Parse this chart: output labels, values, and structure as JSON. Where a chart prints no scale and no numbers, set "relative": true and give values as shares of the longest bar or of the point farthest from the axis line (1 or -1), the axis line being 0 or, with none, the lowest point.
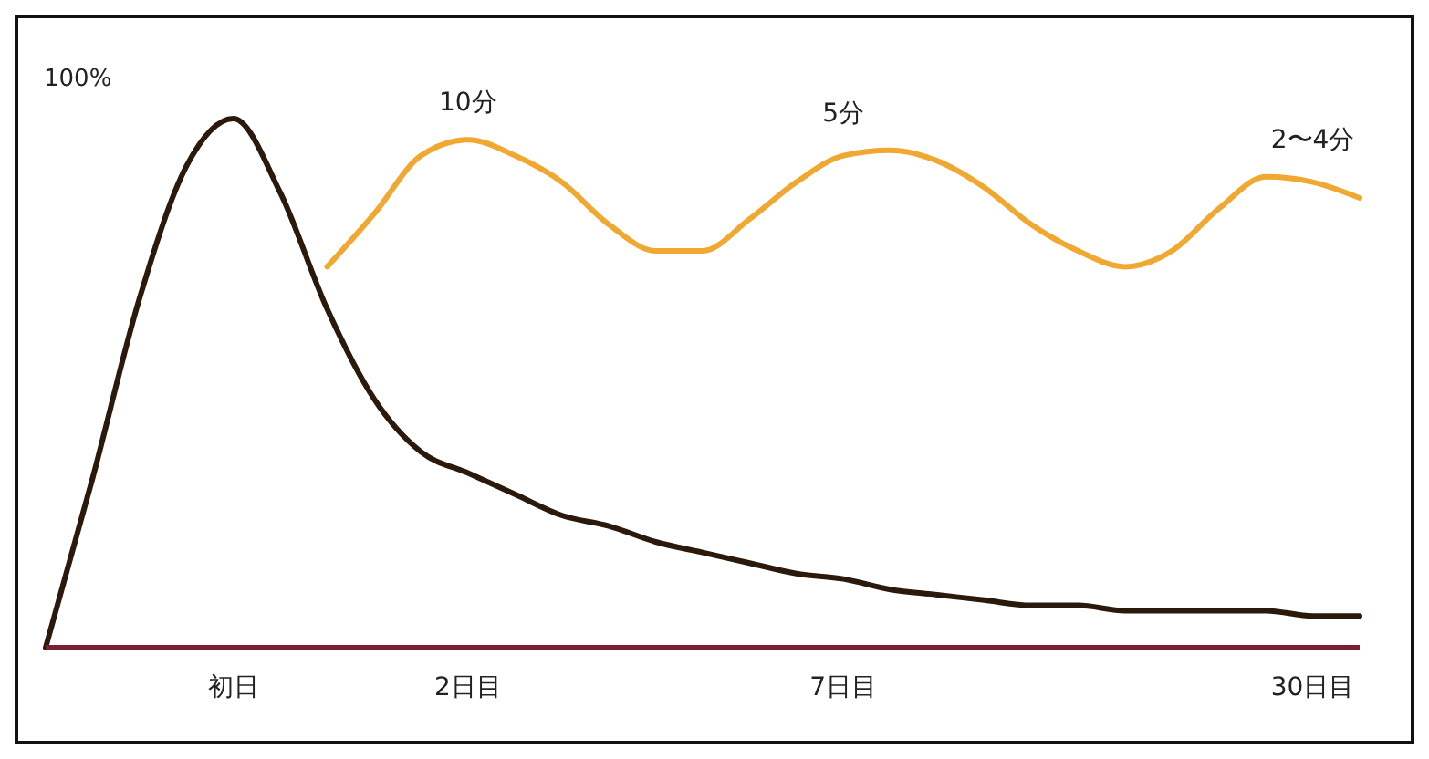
{
  "chart_data": {
    "type": "line",
    "relative": true,
    "legend": false,
    "grid": false,
    "marker": "none",
    "annotations": [
      "100%",
      {
        "text": "10分",
        "x": "2日目",
        "y": 0.96
      },
      {
        "text": "5分",
        "x": "7日目",
        "y": 0.94
      },
      {
        "text": "2〜4分",
        "x": "30日目",
        "y": 0.89
      }
    ],
    "categories": [
      null,
      null,
      null,
      null,
      "初日",
      null,
      null,
      null,
      null,
      "2日目",
      null,
      null,
      null,
      null,
      null,
      null,
      null,
      "7日目",
      null,
      null,
      null,
      null,
      null,
      null,
      null,
      null,
      null,
      "30日目",
      null
    ],
    "series": [
      {
        "color": "#2b1a0c",
        "values": [
          0,
          0.32,
          0.66,
          0.91,
          1,
          0.86,
          0.64,
          0.47,
          0.37,
          0.33,
          0.29,
          0.25,
          0.23,
          0.2,
          0.18,
          0.16,
          0.14,
          0.13,
          0.11,
          0.1,
          0.09,
          0.08,
          0.08,
          0.07,
          0.07,
          0.07,
          0.07,
          0.06,
          0.06
        ]
      },
      {
        "color": "#f0a830",
        "values": [
          null,
          null,
          null,
          null,
          null,
          null,
          0.72,
          0.82,
          0.93,
          0.96,
          0.93,
          0.88,
          0.8,
          0.75,
          0.75,
          0.81,
          0.88,
          0.93,
          0.94,
          0.92,
          0.87,
          0.8,
          0.75,
          0.72,
          0.75,
          0.83,
          0.89,
          0.88,
          0.85
        ]
      }
    ]
  }
}
